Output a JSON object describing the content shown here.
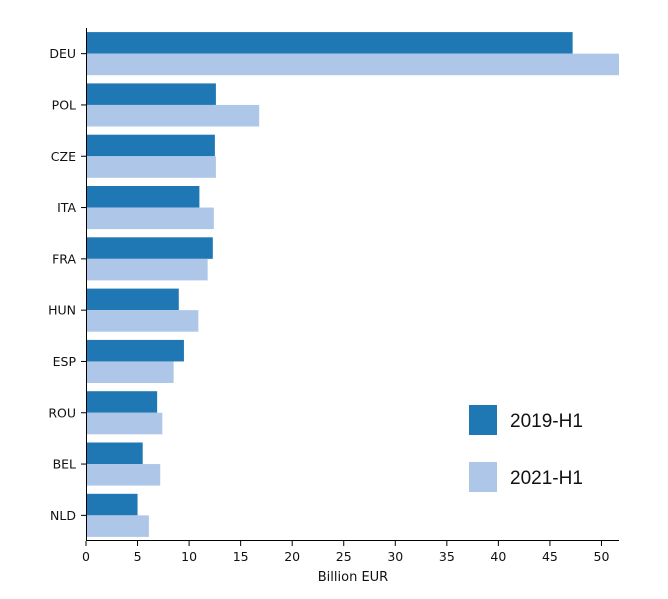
{
  "chart_data": {
    "type": "bar",
    "orientation": "horizontal",
    "categories": [
      "DEU",
      "POL",
      "CZE",
      "ITA",
      "FRA",
      "HUN",
      "ESP",
      "ROU",
      "BEL",
      "NLD"
    ],
    "series": [
      {
        "name": "2019-H1",
        "color": "#1f77b4",
        "values": [
          47.2,
          12.6,
          12.5,
          11.0,
          12.3,
          9.0,
          9.5,
          6.9,
          5.5,
          5.0
        ]
      },
      {
        "name": "2021-H1",
        "color": "#aec7e8",
        "values": [
          51.7,
          16.8,
          12.6,
          12.4,
          11.8,
          10.9,
          8.5,
          7.4,
          7.2,
          6.1
        ]
      }
    ],
    "xlabel": "Billion EUR",
    "ylabel": "",
    "xlim": [
      0,
      51.7
    ],
    "xticks": [
      0,
      5,
      10,
      15,
      20,
      25,
      30,
      35,
      40,
      45,
      50
    ],
    "grid": false,
    "legend": {
      "position": "lower-right",
      "entries": [
        "2019-H1",
        "2021-H1"
      ]
    }
  }
}
